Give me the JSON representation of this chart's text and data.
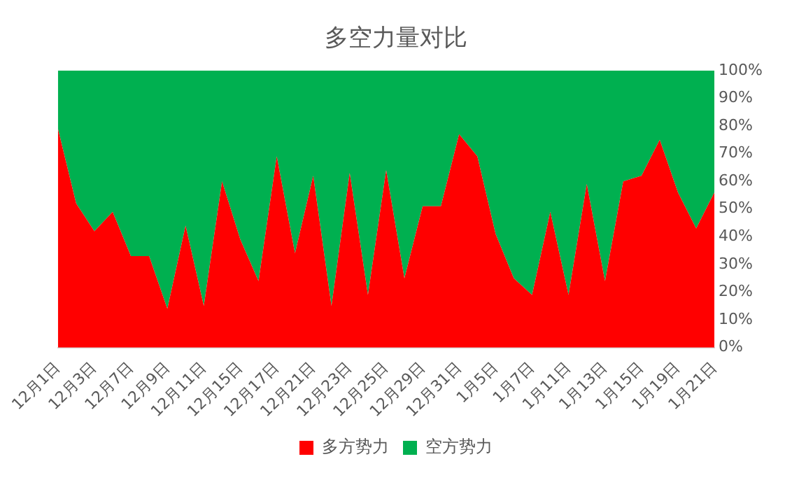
{
  "chart_data": {
    "type": "area",
    "title": "多空力量对比",
    "stacked": true,
    "categories": [
      "12月1日",
      null,
      "12月3日",
      null,
      "12月7日",
      null,
      "12月9日",
      null,
      "12月11日",
      null,
      "12月15日",
      null,
      "12月17日",
      null,
      "12月21日",
      null,
      "12月23日",
      null,
      "12月25日",
      null,
      "12月29日",
      null,
      "12月31日",
      null,
      "1月5日",
      null,
      "1月7日",
      null,
      "1月11日",
      null,
      "1月13日",
      null,
      "1月15日",
      null,
      "1月19日",
      null,
      "1月21日"
    ],
    "series": [
      {
        "name": "多方势力",
        "color": "#ff0000",
        "values": [
          79,
          52,
          42,
          49,
          33,
          33,
          14,
          44,
          15,
          60,
          39,
          24,
          69,
          34,
          62,
          15,
          63,
          19,
          64,
          25,
          51,
          51,
          77,
          69,
          41,
          25,
          19,
          49,
          19,
          59,
          24,
          60,
          62,
          75,
          56,
          43,
          56
        ]
      },
      {
        "name": "空方势力",
        "color": "#00b050",
        "values": [
          21,
          48,
          58,
          51,
          67,
          67,
          86,
          56,
          85,
          40,
          61,
          76,
          31,
          66,
          38,
          85,
          37,
          81,
          36,
          75,
          49,
          49,
          23,
          31,
          59,
          75,
          81,
          51,
          81,
          41,
          76,
          40,
          38,
          25,
          44,
          57,
          44
        ]
      }
    ],
    "ylim": [
      0,
      100
    ],
    "yticks": [
      {
        "value": 0,
        "label": "0%"
      },
      {
        "value": 10,
        "label": "10%"
      },
      {
        "value": 20,
        "label": "20%"
      },
      {
        "value": 30,
        "label": "30%"
      },
      {
        "value": 40,
        "label": "40%"
      },
      {
        "value": 50,
        "label": "50%"
      },
      {
        "value": 60,
        "label": "60%"
      },
      {
        "value": 70,
        "label": "70%"
      },
      {
        "value": 80,
        "label": "80%"
      },
      {
        "value": 90,
        "label": "90%"
      },
      {
        "value": 100,
        "label": "100%"
      }
    ],
    "grid": false,
    "legend": "bottom"
  }
}
